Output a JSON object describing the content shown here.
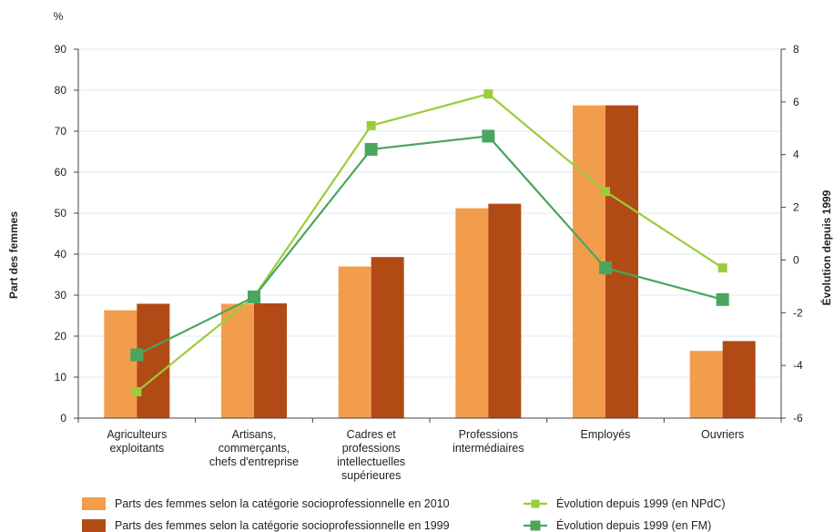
{
  "chart_data": {
    "type": "bar",
    "categories": [
      [
        "Agriculteurs",
        "exploitants"
      ],
      [
        "Artisans,",
        "commerçants,",
        "chefs d'entreprise"
      ],
      [
        "Cadres et",
        "professions",
        "intellectuelles",
        "supérieures"
      ],
      [
        "Professions",
        "intermédiaires"
      ],
      [
        "Employés"
      ],
      [
        "Ouvriers"
      ]
    ],
    "y_unit": "%",
    "ylabel": "Part des femmes",
    "ylim": [
      0,
      90
    ],
    "yticks": [
      0,
      10,
      20,
      30,
      40,
      50,
      60,
      70,
      80,
      90
    ],
    "y2label": "Évolution depuis 1999",
    "y2lim": [
      -6,
      8
    ],
    "y2ticks": [
      -6,
      -4,
      -2,
      0,
      2,
      4,
      6,
      8
    ],
    "grid": true,
    "legend_position": "bottom",
    "colors": {
      "bar2010": "#f29d4b",
      "bar1999": "#b24a16",
      "npdc": "#9acd3a",
      "fm": "#4aa55e",
      "grid": "#dde8ee"
    },
    "bars": [
      {
        "name": "Parts des femmes selon la catégorie socioprofessionnelle en 2010",
        "values": [
          26.3,
          27.9,
          37.0,
          51.2,
          76.3,
          16.4
        ]
      },
      {
        "name": "Parts des femmes selon la catégorie socioprofessionnelle en 1999",
        "values": [
          27.9,
          28.0,
          39.3,
          52.3,
          76.3,
          18.8
        ]
      }
    ],
    "lines": [
      {
        "name": "Évolution depuis 1999 (en NPdC)",
        "axis": "right",
        "values": [
          -5.0,
          -1.4,
          5.1,
          6.3,
          2.6,
          -0.3
        ]
      },
      {
        "name": "Évolution depuis 1999 (en FM)",
        "axis": "right",
        "values": [
          -3.6,
          -1.4,
          4.2,
          4.7,
          -0.3,
          -1.5
        ]
      }
    ]
  }
}
